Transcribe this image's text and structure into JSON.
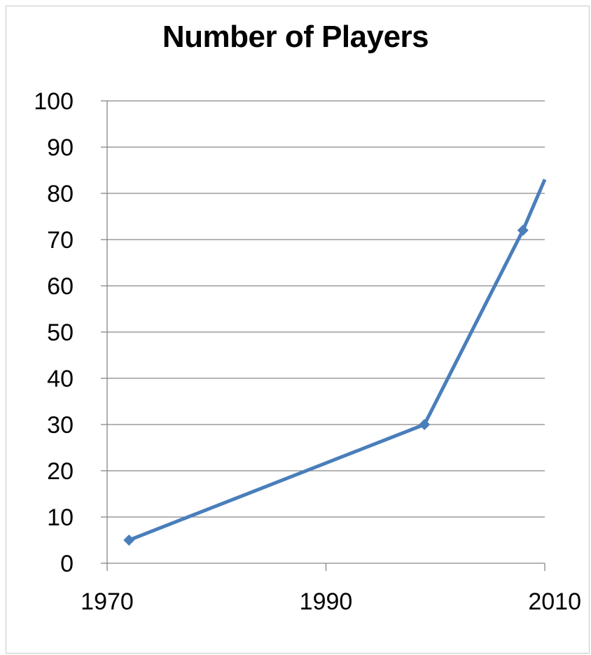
{
  "chart_data": {
    "type": "line",
    "title": "Number of Players",
    "xlabel": "",
    "ylabel": "",
    "xlim": [
      1970,
      2010
    ],
    "ylim": [
      0,
      100
    ],
    "x_ticks": [
      1970,
      1990,
      2010
    ],
    "y_ticks": [
      0,
      10,
      20,
      30,
      40,
      50,
      60,
      70,
      80,
      90,
      100
    ],
    "grid": "horizontal",
    "legend": "none",
    "series": [
      {
        "color": "#4a7ebb",
        "x": [
          1972,
          1999,
          2008,
          2010
        ],
        "y": [
          5,
          30,
          72,
          83
        ],
        "markers": [
          true,
          true,
          true,
          false
        ]
      }
    ]
  }
}
